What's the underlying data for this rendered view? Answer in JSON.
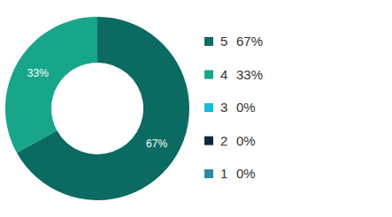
{
  "chart_data": {
    "type": "donut",
    "categories": [
      "5",
      "4",
      "3",
      "2",
      "1"
    ],
    "values": [
      67,
      33,
      0,
      0,
      0
    ],
    "value_labels": [
      "67%",
      "33%",
      "0%",
      "0%",
      "0%"
    ],
    "colors": [
      "#0b6b63",
      "#17a68a",
      "#18bdd6",
      "#0b2a3a",
      "#2a8aa2"
    ],
    "data_labels": true,
    "legend": "right"
  }
}
